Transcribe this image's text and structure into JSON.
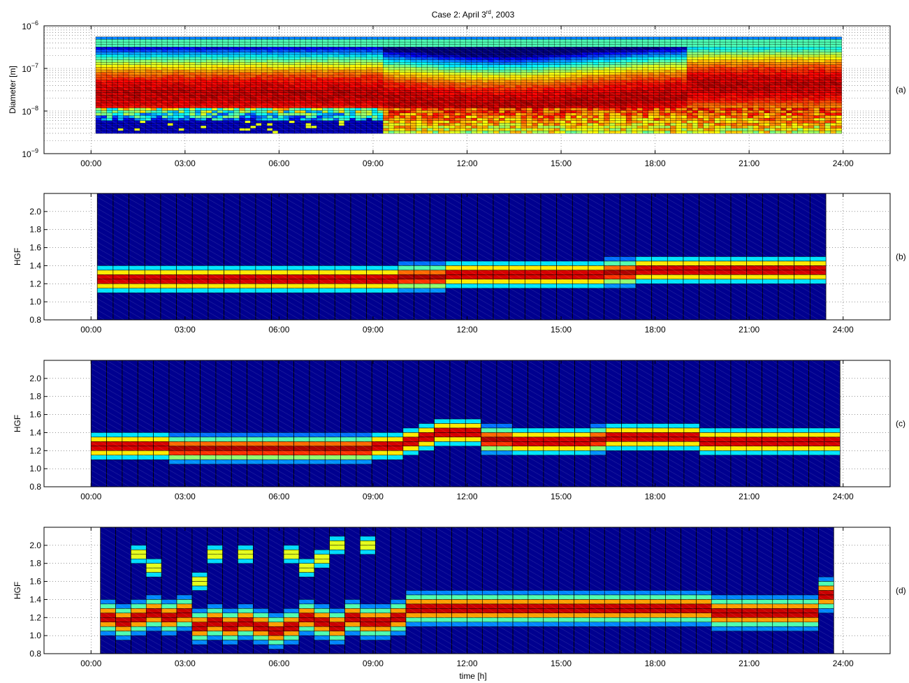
{
  "figure": {
    "title": "Case 2: April 3",
    "title_sup": "rd",
    "title_tail": ", 2003",
    "xlabel": "time [h]"
  },
  "chart_data": [
    {
      "type": "heatmap",
      "panel_label": "(a)",
      "ylabel": "Diameter [m]",
      "y_scale": "log",
      "ylim": [
        1e-09,
        1e-06
      ],
      "y_ticks": [
        {
          "value": 1e-09,
          "base": "10",
          "exp": "−9"
        },
        {
          "value": 1e-08,
          "base": "10",
          "exp": "−8"
        },
        {
          "value": 1e-07,
          "base": "10",
          "exp": "−7"
        },
        {
          "value": 1e-06,
          "base": "10",
          "exp": "−6"
        }
      ],
      "xlim": [
        -1.5,
        25.5
      ],
      "x_ticks": [
        "00:00",
        "03:00",
        "06:00",
        "09:00",
        "12:00",
        "15:00",
        "18:00",
        "21:00",
        "24:00"
      ],
      "x_tick_hours": [
        0,
        3,
        6,
        9,
        12,
        15,
        18,
        21,
        24
      ],
      "data_range_hours": [
        0.15,
        23.95
      ],
      "grid": true,
      "colormap": "jet"
    },
    {
      "type": "heatmap",
      "panel_label": "(b)",
      "ylabel": "HGF",
      "ylim": [
        0.8,
        2.2
      ],
      "y_ticks": [
        "0.8",
        "1.0",
        "1.2",
        "1.4",
        "1.6",
        "1.8",
        "2.0"
      ],
      "y_tick_values": [
        0.8,
        1.0,
        1.2,
        1.4,
        1.6,
        1.8,
        2.0
      ],
      "xlim": [
        -1.5,
        25.5
      ],
      "x_ticks": [
        "00:00",
        "03:00",
        "06:00",
        "09:00",
        "12:00",
        "15:00",
        "18:00",
        "21:00",
        "24:00"
      ],
      "x_tick_hours": [
        0,
        3,
        6,
        9,
        12,
        15,
        18,
        21,
        24
      ],
      "data_range_hours": [
        0.2,
        23.45
      ],
      "grid": true,
      "colormap": "jet",
      "peak_hgf": [
        1.25,
        1.25,
        1.25,
        1.25,
        1.25,
        1.25,
        1.25,
        1.25,
        1.25,
        1.25,
        1.25,
        1.25,
        1.25,
        1.25,
        1.25,
        1.25,
        1.25,
        1.25,
        1.25,
        1.27,
        1.27,
        1.27,
        1.3,
        1.3,
        1.3,
        1.3,
        1.3,
        1.3,
        1.3,
        1.3,
        1.3,
        1.3,
        1.32,
        1.32,
        1.35,
        1.35,
        1.35,
        1.35,
        1.35,
        1.35,
        1.35,
        1.35,
        1.35,
        1.35,
        1.35,
        1.35
      ]
    },
    {
      "type": "heatmap",
      "panel_label": "(c)",
      "ylabel": "HGF",
      "ylim": [
        0.8,
        2.2
      ],
      "y_ticks": [
        "0.8",
        "1.0",
        "1.2",
        "1.4",
        "1.6",
        "1.8",
        "2.0"
      ],
      "y_tick_values": [
        0.8,
        1.0,
        1.2,
        1.4,
        1.6,
        1.8,
        2.0
      ],
      "xlim": [
        -1.5,
        25.5
      ],
      "x_ticks": [
        "00:00",
        "03:00",
        "06:00",
        "09:00",
        "12:00",
        "15:00",
        "18:00",
        "21:00",
        "24:00"
      ],
      "x_tick_hours": [
        0,
        3,
        6,
        9,
        12,
        15,
        18,
        21,
        24
      ],
      "data_range_hours": [
        0.0,
        23.9
      ],
      "grid": true,
      "colormap": "jet",
      "peak_hgf": [
        1.25,
        1.25,
        1.25,
        1.25,
        1.25,
        1.22,
        1.22,
        1.22,
        1.22,
        1.22,
        1.22,
        1.22,
        1.22,
        1.22,
        1.22,
        1.22,
        1.22,
        1.22,
        1.25,
        1.25,
        1.3,
        1.35,
        1.4,
        1.4,
        1.4,
        1.32,
        1.32,
        1.3,
        1.3,
        1.3,
        1.3,
        1.3,
        1.32,
        1.35,
        1.35,
        1.35,
        1.35,
        1.35,
        1.35,
        1.3,
        1.3,
        1.3,
        1.3,
        1.3,
        1.3,
        1.3,
        1.3,
        1.3
      ]
    },
    {
      "type": "heatmap",
      "panel_label": "(d)",
      "ylabel": "HGF",
      "ylim": [
        0.8,
        2.2
      ],
      "y_ticks": [
        "0.8",
        "1.0",
        "1.2",
        "1.4",
        "1.6",
        "1.8",
        "2.0"
      ],
      "y_tick_values": [
        0.8,
        1.0,
        1.2,
        1.4,
        1.6,
        1.8,
        2.0
      ],
      "xlim": [
        -1.5,
        25.5
      ],
      "x_ticks": [
        "00:00",
        "03:00",
        "06:00",
        "09:00",
        "12:00",
        "15:00",
        "18:00",
        "21:00",
        "24:00"
      ],
      "x_tick_hours": [
        0,
        3,
        6,
        9,
        12,
        15,
        18,
        21,
        24
      ],
      "data_range_hours": [
        0.3,
        23.7
      ],
      "grid": true,
      "colormap": "jet",
      "peak_hgf": [
        1.2,
        1.15,
        1.2,
        1.25,
        1.2,
        1.25,
        1.1,
        1.15,
        1.1,
        1.15,
        1.1,
        1.05,
        1.1,
        1.2,
        1.15,
        1.1,
        1.2,
        1.15,
        1.15,
        1.2,
        1.3,
        1.3,
        1.3,
        1.3,
        1.3,
        1.3,
        1.3,
        1.3,
        1.3,
        1.3,
        1.3,
        1.3,
        1.3,
        1.3,
        1.3,
        1.3,
        1.3,
        1.3,
        1.3,
        1.3,
        1.25,
        1.25,
        1.25,
        1.25,
        1.25,
        1.25,
        1.25,
        1.45
      ],
      "secondary_modes": [
        {
          "hour": 1.4,
          "hgf": 1.9
        },
        {
          "hour": 1.9,
          "hgf": 1.75
        },
        {
          "hour": 3.3,
          "hgf": 1.6
        },
        {
          "hour": 3.9,
          "hgf": 1.9
        },
        {
          "hour": 5.0,
          "hgf": 1.9
        },
        {
          "hour": 6.3,
          "hgf": 1.9
        },
        {
          "hour": 6.9,
          "hgf": 1.75
        },
        {
          "hour": 7.4,
          "hgf": 1.85
        },
        {
          "hour": 7.9,
          "hgf": 2.0
        },
        {
          "hour": 8.9,
          "hgf": 2.0
        }
      ]
    }
  ]
}
